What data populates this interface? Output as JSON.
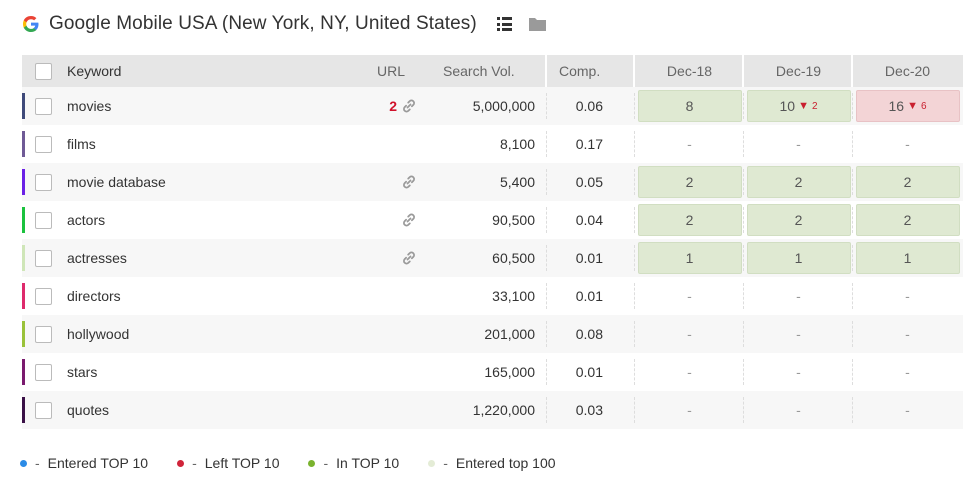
{
  "header": {
    "title": "Google Mobile USA (New York, NY, United States)"
  },
  "columns": {
    "keyword": "Keyword",
    "url": "URL",
    "volume": "Search Vol.",
    "comp": "Comp.",
    "dates": [
      "Dec-18",
      "Dec-19",
      "Dec-20"
    ]
  },
  "rows": [
    {
      "bar_color": "#3f4a7a",
      "keyword": "movies",
      "url_count": "2",
      "has_link": true,
      "volume": "5,000,000",
      "comp": "0.06",
      "positions": [
        {
          "value": "8",
          "state": "green"
        },
        {
          "value": "10",
          "state": "green",
          "change": "2"
        },
        {
          "value": "16",
          "state": "red",
          "change": "6"
        }
      ]
    },
    {
      "bar_color": "#6f5a96",
      "keyword": "films",
      "url_count": "",
      "has_link": false,
      "volume": "8,100",
      "comp": "0.17",
      "positions": [
        {
          "value": "-",
          "state": "none"
        },
        {
          "value": "-",
          "state": "none"
        },
        {
          "value": "-",
          "state": "none"
        }
      ]
    },
    {
      "bar_color": "#6b21e6",
      "keyword": "movie database",
      "url_count": "",
      "has_link": true,
      "volume": "5,400",
      "comp": "0.05",
      "positions": [
        {
          "value": "2",
          "state": "green"
        },
        {
          "value": "2",
          "state": "green"
        },
        {
          "value": "2",
          "state": "green"
        }
      ]
    },
    {
      "bar_color": "#1bc23e",
      "keyword": "actors",
      "url_count": "",
      "has_link": true,
      "volume": "90,500",
      "comp": "0.04",
      "positions": [
        {
          "value": "2",
          "state": "green"
        },
        {
          "value": "2",
          "state": "green"
        },
        {
          "value": "2",
          "state": "green"
        }
      ]
    },
    {
      "bar_color": "#cfe6b8",
      "keyword": "actresses",
      "url_count": "",
      "has_link": true,
      "volume": "60,500",
      "comp": "0.01",
      "positions": [
        {
          "value": "1",
          "state": "green"
        },
        {
          "value": "1",
          "state": "green"
        },
        {
          "value": "1",
          "state": "green"
        }
      ]
    },
    {
      "bar_color": "#de2a6c",
      "keyword": "directors",
      "url_count": "",
      "has_link": false,
      "volume": "33,100",
      "comp": "0.01",
      "positions": [
        {
          "value": "-",
          "state": "none"
        },
        {
          "value": "-",
          "state": "none"
        },
        {
          "value": "-",
          "state": "none"
        }
      ]
    },
    {
      "bar_color": "#9ac23a",
      "keyword": "hollywood",
      "url_count": "",
      "has_link": false,
      "volume": "201,000",
      "comp": "0.08",
      "positions": [
        {
          "value": "-",
          "state": "none"
        },
        {
          "value": "-",
          "state": "none"
        },
        {
          "value": "-",
          "state": "none"
        }
      ]
    },
    {
      "bar_color": "#7a1a6e",
      "keyword": "stars",
      "url_count": "",
      "has_link": false,
      "volume": "165,000",
      "comp": "0.01",
      "positions": [
        {
          "value": "-",
          "state": "none"
        },
        {
          "value": "-",
          "state": "none"
        },
        {
          "value": "-",
          "state": "none"
        }
      ]
    },
    {
      "bar_color": "#3a1046",
      "keyword": "quotes",
      "url_count": "",
      "has_link": false,
      "volume": "1,220,000",
      "comp": "0.03",
      "positions": [
        {
          "value": "-",
          "state": "none"
        },
        {
          "value": "-",
          "state": "none"
        },
        {
          "value": "-",
          "state": "none"
        }
      ]
    }
  ],
  "legend": [
    {
      "color": "#2b8be6",
      "label": "Entered TOP 10"
    },
    {
      "color": "#d0243a",
      "label": "Left TOP 10"
    },
    {
      "color": "#7ab32e",
      "label": "In TOP 10"
    },
    {
      "color": "#e4ecd6",
      "label": "Entered top 100"
    }
  ],
  "colors": {
    "down_arrow": "#c9202f",
    "url_count": "#d0112b"
  }
}
